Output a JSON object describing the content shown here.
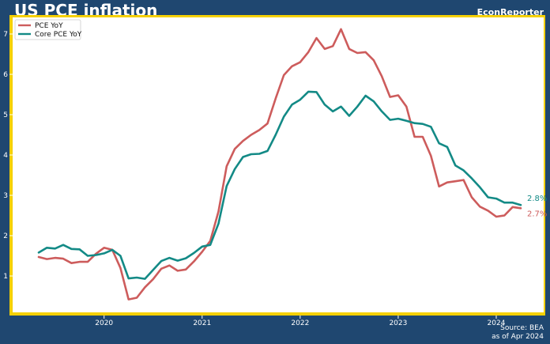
{
  "header": {
    "title": "US PCE inflation",
    "brand": "EconReporter"
  },
  "footer": {
    "source_line1": "Source: BEA",
    "source_line2": "as of Apr 2024"
  },
  "colors": {
    "background": "#1f4770",
    "plot_background": "#ffffff",
    "frame": "#f5d000",
    "pce": "#cd5c5c",
    "core": "#138a86"
  },
  "chart_data": {
    "type": "line",
    "title": "US PCE inflation",
    "xlabel": "",
    "ylabel": "",
    "grid": false,
    "legend_position": "top-left",
    "x_start": "2019-05",
    "x_ticks": [
      "2020",
      "2021",
      "2022",
      "2023",
      "2024"
    ],
    "ylim": [
      0,
      7.4
    ],
    "y_ticks": [
      1,
      2,
      3,
      4,
      5,
      6,
      7
    ],
    "series": [
      {
        "name": "PCE YoY",
        "end_label": "2.7%",
        "values": [
          1.47,
          1.42,
          1.45,
          1.43,
          1.32,
          1.35,
          1.35,
          1.55,
          1.7,
          1.65,
          1.2,
          0.42,
          0.46,
          0.72,
          0.92,
          1.18,
          1.26,
          1.13,
          1.16,
          1.36,
          1.6,
          1.87,
          2.6,
          3.72,
          4.15,
          4.35,
          4.5,
          4.62,
          4.78,
          5.4,
          5.98,
          6.2,
          6.3,
          6.55,
          6.9,
          6.63,
          6.7,
          7.12,
          6.63,
          6.53,
          6.55,
          6.35,
          5.95,
          5.44,
          5.48,
          5.2,
          4.45,
          4.45,
          3.98,
          3.22,
          3.32,
          3.35,
          3.38,
          2.95,
          2.72,
          2.62,
          2.47,
          2.5,
          2.71,
          2.68
        ]
      },
      {
        "name": "Core PCE YoY",
        "end_label": "2.8%",
        "values": [
          1.58,
          1.7,
          1.68,
          1.77,
          1.67,
          1.66,
          1.5,
          1.52,
          1.56,
          1.65,
          1.5,
          0.94,
          0.96,
          0.93,
          1.15,
          1.37,
          1.45,
          1.38,
          1.44,
          1.57,
          1.73,
          1.77,
          2.3,
          3.23,
          3.65,
          3.95,
          4.02,
          4.03,
          4.1,
          4.5,
          4.95,
          5.25,
          5.37,
          5.57,
          5.56,
          5.25,
          5.08,
          5.2,
          4.97,
          5.2,
          5.47,
          5.33,
          5.08,
          4.87,
          4.9,
          4.85,
          4.79,
          4.77,
          4.7,
          4.29,
          4.2,
          3.74,
          3.62,
          3.42,
          3.2,
          2.95,
          2.92,
          2.82,
          2.82,
          2.76
        ]
      }
    ]
  }
}
